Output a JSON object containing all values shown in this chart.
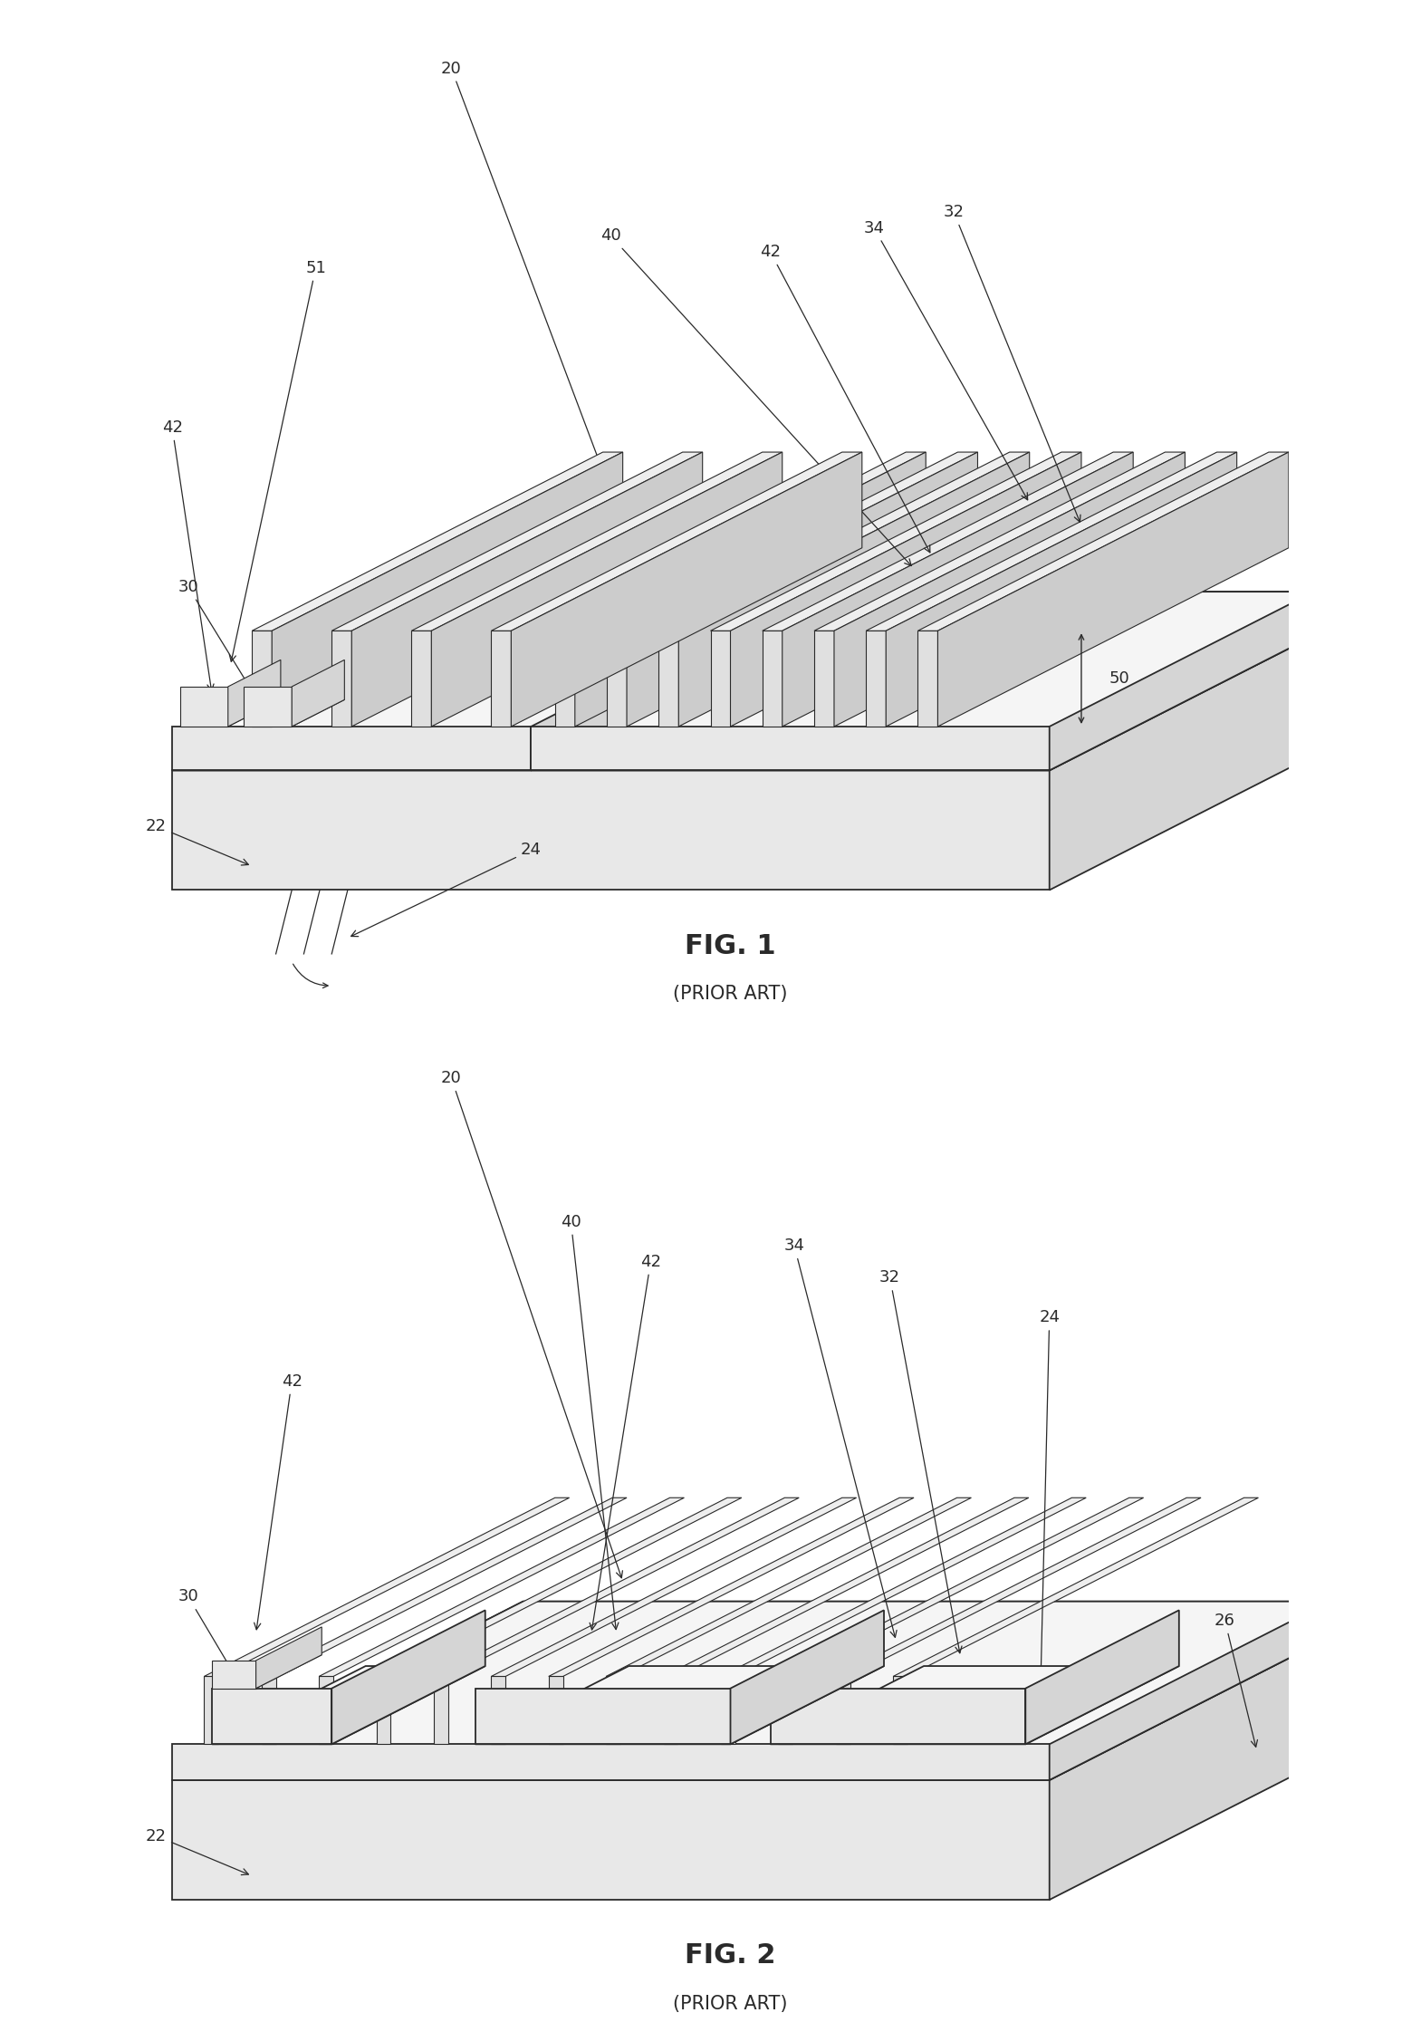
{
  "bg_color": "#ffffff",
  "line_color": "#2a2a2a",
  "lw_main": 1.3,
  "lw_thin": 0.8,
  "label_fontsize": 13,
  "fig_label_fontsize": 22,
  "subtitle_fontsize": 15,
  "fig1": {
    "title": "FIG. 1",
    "subtitle": "(PRIOR ART)"
  },
  "fig2": {
    "title": "FIG. 2",
    "subtitle": "(PRIOR ART)"
  }
}
